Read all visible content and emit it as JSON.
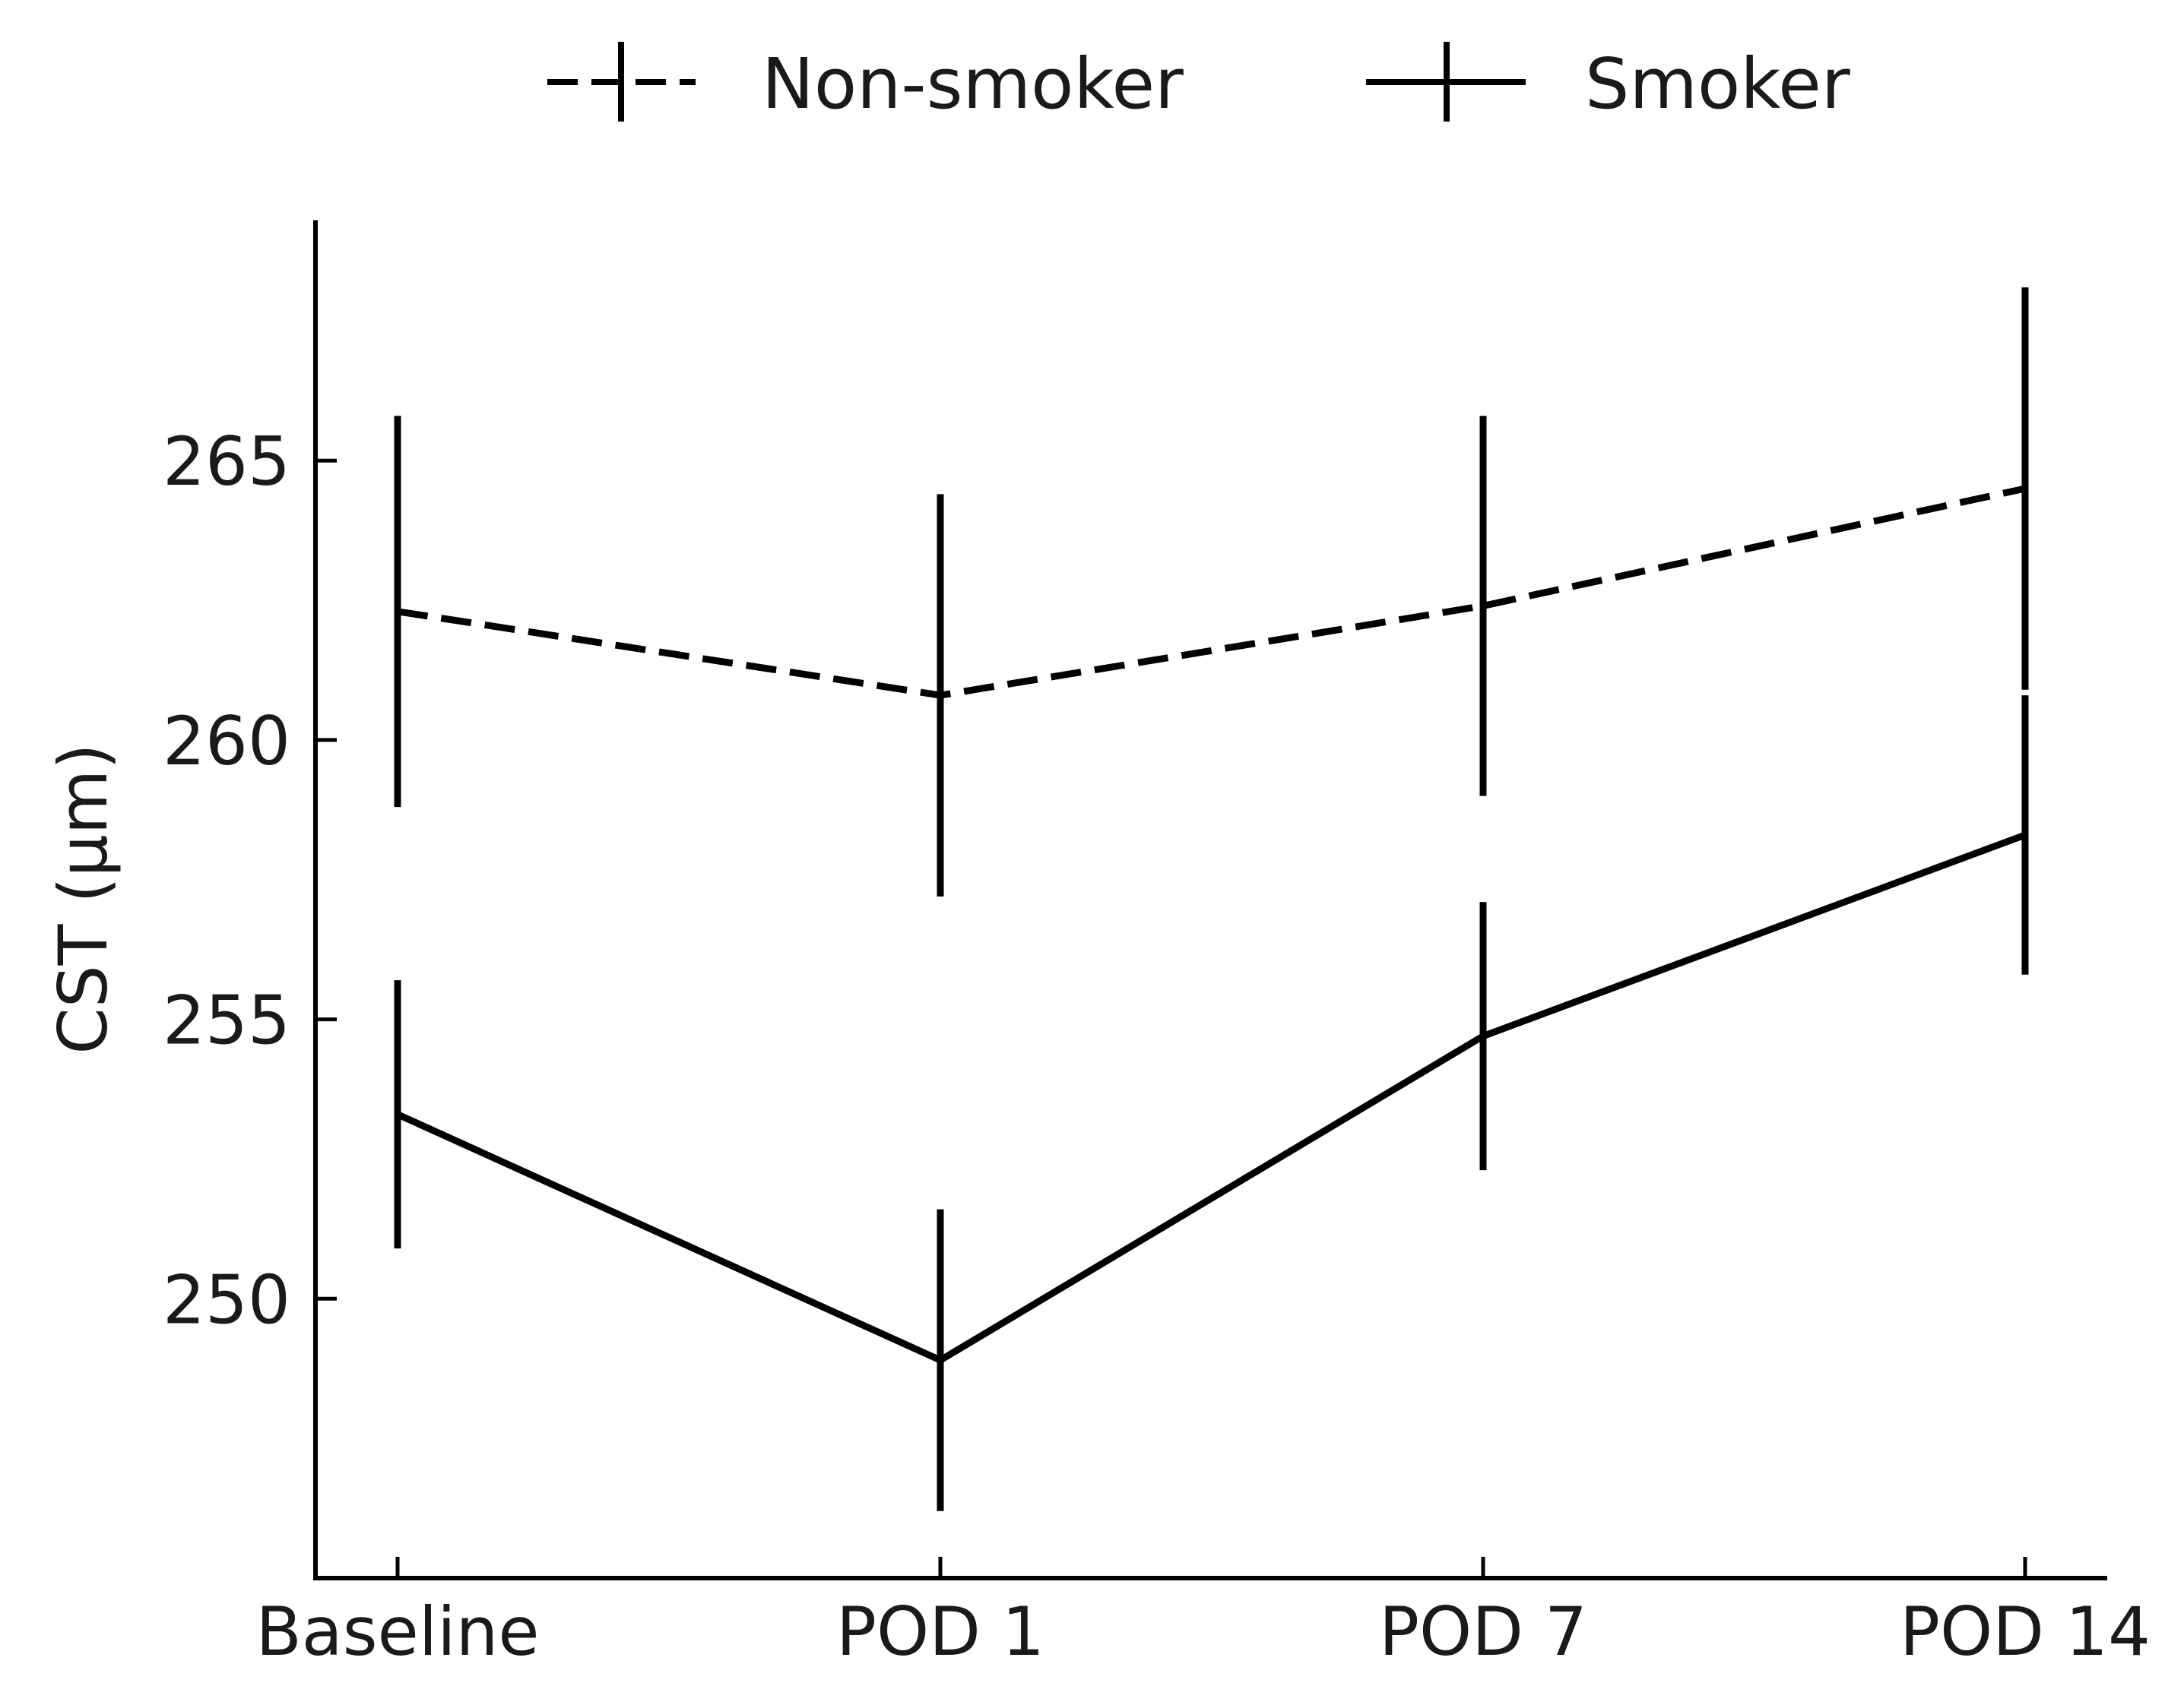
{
  "chart_data": {
    "type": "line",
    "title": "",
    "xlabel": "",
    "ylabel": "CST (μm)",
    "categories": [
      "Baseline",
      "POD 1",
      "POD 7",
      "POD 14"
    ],
    "ylim": [
      245.0,
      269.3
    ],
    "yticks": [
      250,
      255,
      260,
      265
    ],
    "grid": false,
    "legend_position": "top-center",
    "series": [
      {
        "name": "Non-smoker",
        "line_style": "dashed",
        "color": "#000000",
        "values": [
          262.3,
          260.8,
          262.4,
          264.5
        ],
        "error": [
          3.5,
          3.6,
          3.4,
          3.6
        ]
      },
      {
        "name": "Smoker",
        "line_style": "solid",
        "color": "#000000",
        "values": [
          253.3,
          248.9,
          254.7,
          258.3
        ],
        "error": [
          2.4,
          2.7,
          2.4,
          2.5
        ]
      }
    ]
  }
}
